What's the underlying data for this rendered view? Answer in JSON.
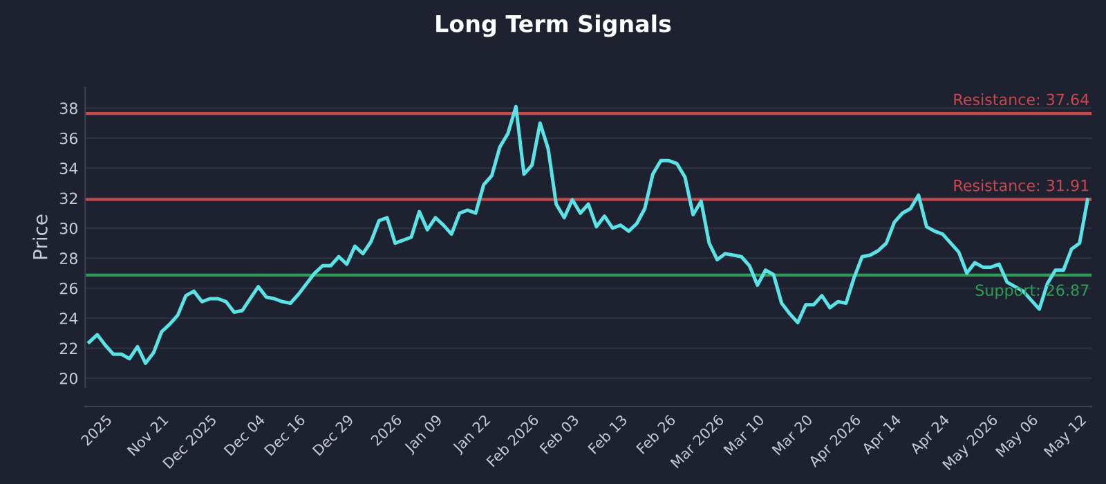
{
  "chart_data": {
    "type": "line",
    "title": "Long Term Signals",
    "ylabel": "Price",
    "categories": [
      null,
      null,
      "2025",
      null,
      null,
      null,
      null,
      null,
      null,
      "Nov 21",
      null,
      null,
      null,
      null,
      null,
      "Dec 2025",
      null,
      null,
      null,
      null,
      null,
      "Dec 04",
      null,
      null,
      null,
      null,
      "Dec 16",
      null,
      null,
      null,
      null,
      null,
      "Dec 29",
      null,
      null,
      null,
      null,
      null,
      "2026",
      null,
      null,
      null,
      null,
      "Jan 09",
      null,
      null,
      null,
      null,
      null,
      "Jan 22",
      null,
      null,
      null,
      null,
      null,
      "Feb 2026",
      null,
      null,
      null,
      null,
      "Feb 03",
      null,
      null,
      null,
      null,
      null,
      "Feb 13",
      null,
      null,
      null,
      null,
      null,
      "Feb 26",
      null,
      null,
      null,
      null,
      null,
      "Mar 2026",
      null,
      null,
      null,
      null,
      "Mar 10",
      null,
      null,
      null,
      null,
      null,
      "Mar 20",
      null,
      null,
      null,
      null,
      null,
      "Apr 2026",
      null,
      null,
      null,
      null,
      "Apr 14",
      null,
      null,
      null,
      null,
      null,
      "Apr 24",
      null,
      null,
      null,
      null,
      null,
      "May 2026",
      null,
      null,
      null,
      null,
      "May 06",
      null,
      null,
      null,
      null,
      null,
      "May 12",
      null
    ],
    "series": [
      {
        "color": "#5ce1e6",
        "values": [
          22.4,
          22.9,
          22.2,
          21.6,
          21.6,
          21.3,
          22.1,
          21.0,
          21.7,
          23.1,
          23.6,
          24.2,
          25.5,
          25.8,
          25.1,
          25.3,
          25.3,
          25.1,
          24.4,
          24.5,
          25.3,
          26.1,
          25.4,
          25.3,
          25.1,
          25.0,
          25.6,
          26.3,
          27.0,
          27.5,
          27.5,
          28.1,
          27.6,
          28.8,
          28.3,
          29.1,
          30.5,
          30.7,
          29.0,
          29.2,
          29.4,
          31.1,
          29.9,
          30.7,
          30.2,
          29.6,
          31.0,
          31.2,
          31.0,
          32.9,
          33.5,
          35.4,
          36.3,
          38.1,
          33.6,
          34.2,
          37.0,
          35.3,
          31.6,
          30.7,
          31.9,
          31.0,
          31.6,
          30.1,
          30.8,
          30.0,
          30.2,
          29.8,
          30.3,
          31.3,
          33.6,
          34.5,
          34.5,
          34.3,
          33.4,
          30.9,
          31.8,
          29.0,
          27.9,
          28.3,
          28.2,
          28.1,
          27.5,
          26.2,
          27.2,
          26.9,
          25.0,
          24.3,
          23.7,
          24.9,
          24.9,
          25.5,
          24.7,
          25.1,
          25.0,
          26.7,
          28.1,
          28.2,
          28.5,
          29.0,
          30.4,
          31.0,
          31.3,
          32.2,
          30.1,
          29.8,
          29.6,
          29.0,
          28.4,
          27.0,
          27.7,
          27.4,
          27.4,
          27.6,
          26.4,
          26.1,
          25.8,
          25.2,
          24.6,
          26.3,
          27.2,
          27.2,
          28.6,
          29.0,
          31.9
        ]
      }
    ],
    "ylim": [
      19.4,
      39.4
    ],
    "yticks": [
      20,
      22,
      24,
      26,
      28,
      30,
      32,
      34,
      36,
      38
    ],
    "grid": "y",
    "line_style": "solid",
    "marker": "none",
    "ref_lines": [
      {
        "axis": "y",
        "value": 37.64,
        "label": "Resistance: 37.64",
        "color": "#c9484e"
      },
      {
        "axis": "y",
        "value": 31.91,
        "label": "Resistance: 31.91",
        "color": "#c9484e"
      },
      {
        "axis": "y",
        "value": 26.87,
        "label": "Support: 26.87",
        "color": "#2f9e55"
      }
    ]
  }
}
